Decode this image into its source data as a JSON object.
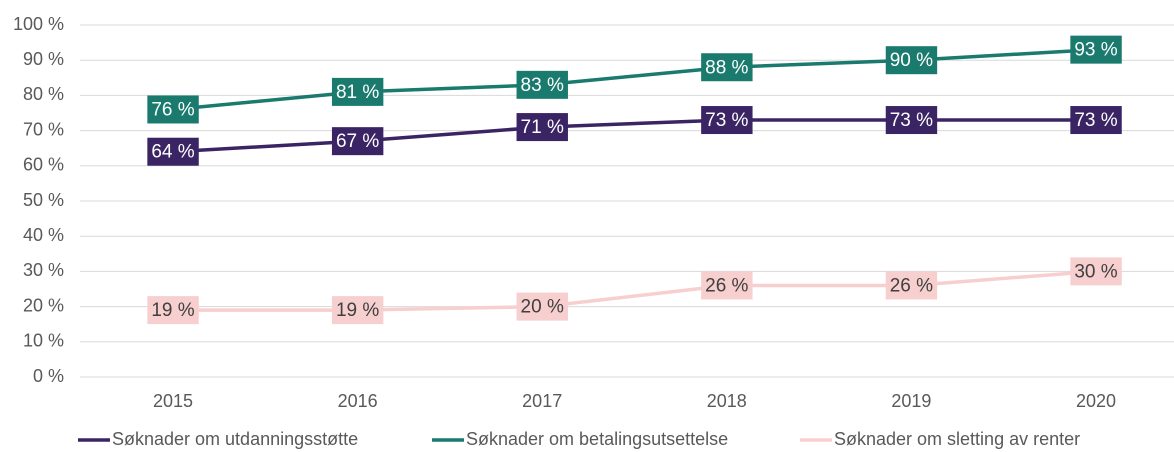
{
  "chart_data": {
    "type": "line",
    "categories": [
      "2015",
      "2016",
      "2017",
      "2018",
      "2019",
      "2020"
    ],
    "series": [
      {
        "name": "Søknader om utdanningsstøtte",
        "color": "#3b2464",
        "label_text_color": "#ffffff",
        "values": [
          64,
          67,
          71,
          73,
          73,
          73
        ],
        "value_labels": [
          "64 %",
          "67 %",
          "71 %",
          "73 %",
          "73 %",
          "73 %"
        ]
      },
      {
        "name": "Søknader om betalingsutsettelse",
        "color": "#1a7a6e",
        "label_text_color": "#ffffff",
        "values": [
          76,
          81,
          83,
          88,
          90,
          93
        ],
        "value_labels": [
          "76 %",
          "81 %",
          "83 %",
          "88 %",
          "90 %",
          "93 %"
        ]
      },
      {
        "name": "Søknader om sletting av renter",
        "color": "#f7cfcf",
        "label_text_color": "#404040",
        "values": [
          19,
          19,
          20,
          26,
          26,
          30
        ],
        "value_labels": [
          "19 %",
          "19 %",
          "20 %",
          "26 %",
          "26 %",
          "30 %"
        ]
      }
    ],
    "ylim": [
      0,
      100
    ],
    "yticks": [
      {
        "value": 0,
        "label": "0 %"
      },
      {
        "value": 10,
        "label": "10 %"
      },
      {
        "value": 20,
        "label": "20 %"
      },
      {
        "value": 30,
        "label": "30 %"
      },
      {
        "value": 40,
        "label": "40 %"
      },
      {
        "value": 50,
        "label": "50 %"
      },
      {
        "value": 60,
        "label": "60 %"
      },
      {
        "value": 70,
        "label": "70 %"
      },
      {
        "value": 80,
        "label": "80 %"
      },
      {
        "value": 90,
        "label": "90 %"
      },
      {
        "value": 100,
        "label": "100 %"
      }
    ],
    "grid": true,
    "legend": "bottom"
  }
}
